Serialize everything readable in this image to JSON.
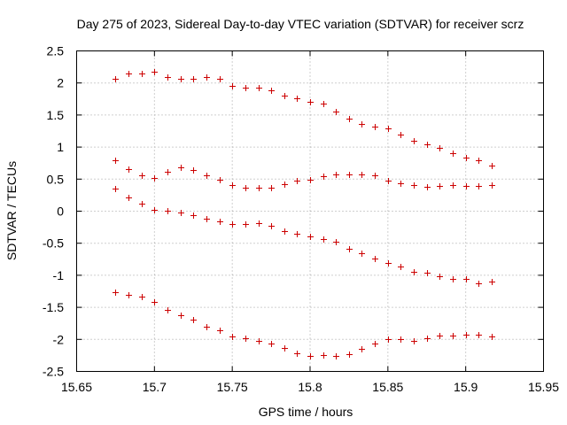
{
  "chart_data": {
    "type": "scatter",
    "title": "Day 275 of 2023, Sidereal Day-to-day VTEC variation (SDTVAR) for receiver scrz",
    "xlabel": "GPS time / hours",
    "ylabel": "SDTVAR / TECUs",
    "xlim": [
      15.65,
      15.95
    ],
    "ylim": [
      -2.5,
      2.5
    ],
    "xticks": [
      "15.65",
      "15.7",
      "15.75",
      "15.8",
      "15.85",
      "15.9",
      "15.95"
    ],
    "yticks": [
      "2.5",
      "2",
      "1.5",
      "1",
      "0.5",
      "0",
      "-0.5",
      "-1",
      "-1.5",
      "-2",
      "-2.5"
    ],
    "grid": true,
    "marker": "+",
    "color": "#cc0000",
    "x": [
      15.675,
      15.6833,
      15.6917,
      15.7,
      15.7083,
      15.7167,
      15.725,
      15.7333,
      15.7417,
      15.75,
      15.7583,
      15.7667,
      15.775,
      15.7833,
      15.7917,
      15.8,
      15.8083,
      15.8167,
      15.825,
      15.8333,
      15.8417,
      15.85,
      15.8583,
      15.8667,
      15.875,
      15.8833,
      15.8917,
      15.9,
      15.9083,
      15.9167
    ],
    "series": [
      {
        "name": "series-1",
        "values": [
          2.07,
          2.15,
          2.15,
          2.17,
          2.09,
          2.07,
          2.06,
          2.09,
          2.06,
          1.96,
          1.93,
          1.92,
          1.89,
          1.8,
          1.76,
          1.7,
          1.68,
          1.56,
          1.44,
          1.36,
          1.32,
          1.29,
          1.19,
          1.1,
          1.04,
          0.99,
          0.9,
          0.83,
          0.8,
          0.71
        ]
      },
      {
        "name": "series-2",
        "values": [
          0.8,
          0.66,
          0.56,
          0.52,
          0.61,
          0.69,
          0.64,
          0.56,
          0.49,
          0.41,
          0.37,
          0.36,
          0.36,
          0.42,
          0.47,
          0.49,
          0.55,
          0.58,
          0.58,
          0.58,
          0.56,
          0.47,
          0.43,
          0.41,
          0.38,
          0.4,
          0.41,
          0.4,
          0.4,
          0.41
        ]
      },
      {
        "name": "series-3",
        "values": [
          0.35,
          0.21,
          0.12,
          0.02,
          0.01,
          -0.02,
          -0.06,
          -0.12,
          -0.16,
          -0.2,
          -0.2,
          -0.18,
          -0.23,
          -0.31,
          -0.35,
          -0.39,
          -0.43,
          -0.47,
          -0.59,
          -0.66,
          -0.74,
          -0.81,
          -0.87,
          -0.95,
          -0.96,
          -1.01,
          -1.05,
          -1.06,
          -1.12,
          -1.1
        ]
      },
      {
        "name": "series-4",
        "values": [
          -1.26,
          -1.31,
          -1.33,
          -1.42,
          -1.54,
          -1.62,
          -1.69,
          -1.8,
          -1.86,
          -1.95,
          -1.98,
          -2.02,
          -2.06,
          -2.14,
          -2.22,
          -2.26,
          -2.24,
          -2.26,
          -2.23,
          -2.15,
          -2.06,
          -1.99,
          -1.99,
          -2.02,
          -1.98,
          -1.94,
          -1.94,
          -1.93,
          -1.92,
          -1.96
        ]
      }
    ]
  }
}
